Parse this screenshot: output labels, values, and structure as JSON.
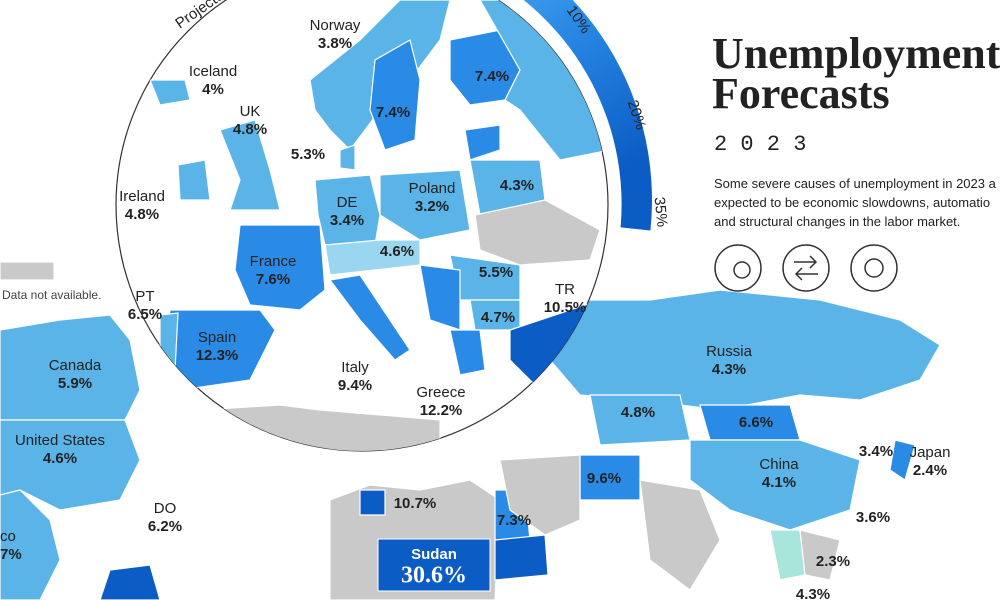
{
  "header": {
    "title_line1": "Unemployment",
    "title_line2": "Forecasts",
    "year": "2 0 2 3",
    "description": [
      "Some severe causes of unemployment in 2023 a",
      "expected to be economic slowdowns, automatio",
      "and structural changes in the labor market."
    ]
  },
  "legend": {
    "caption": "Projecte",
    "ticks": [
      "10%",
      "20%",
      "35%"
    ],
    "no_data": "Data not available."
  },
  "labels": [
    {
      "name": "Norway",
      "value": "3.8%"
    },
    {
      "name": "Iceland",
      "value": "4%"
    },
    {
      "name": "UK",
      "value": "4.8%"
    },
    {
      "value": "5.3%"
    },
    {
      "name": "Ireland",
      "value": "4.8%"
    },
    {
      "name": "DE",
      "value": "3.4%"
    },
    {
      "name": "Poland",
      "value": "3.2%"
    },
    {
      "value": "7.4%"
    },
    {
      "value": "7.4%"
    },
    {
      "value": "4.3%"
    },
    {
      "value": "4.6%"
    },
    {
      "name": "France",
      "value": "7.6%"
    },
    {
      "value": "5.5%"
    },
    {
      "name": "PT",
      "value": "6.5%"
    },
    {
      "name": "Spain",
      "value": "12.3%"
    },
    {
      "name": "TR",
      "value": "10.5%"
    },
    {
      "value": "4.7%"
    },
    {
      "name": "Italy",
      "value": "9.4%"
    },
    {
      "name": "Greece",
      "value": "12.2%"
    },
    {
      "name": "Canada",
      "value": "5.9%"
    },
    {
      "name": "United States",
      "value": "4.6%"
    },
    {
      "name": "Russia",
      "value": "4.3%"
    },
    {
      "value": "4.8%"
    },
    {
      "value": "6.6%"
    },
    {
      "value": "3.4%"
    },
    {
      "name": "Japan",
      "value": "2.4%"
    },
    {
      "name": "China",
      "value": "4.1%"
    },
    {
      "value": "9.6%"
    },
    {
      "value": "10.7%"
    },
    {
      "value": "7.3%"
    },
    {
      "name": "DO",
      "value": "6.2%"
    },
    {
      "name": "Sudan",
      "value": "30.6%"
    },
    {
      "value": "3.6%"
    },
    {
      "value": "2.3%"
    },
    {
      "value": "4.3%"
    },
    {
      "name": "co",
      "value": "7%"
    }
  ]
}
